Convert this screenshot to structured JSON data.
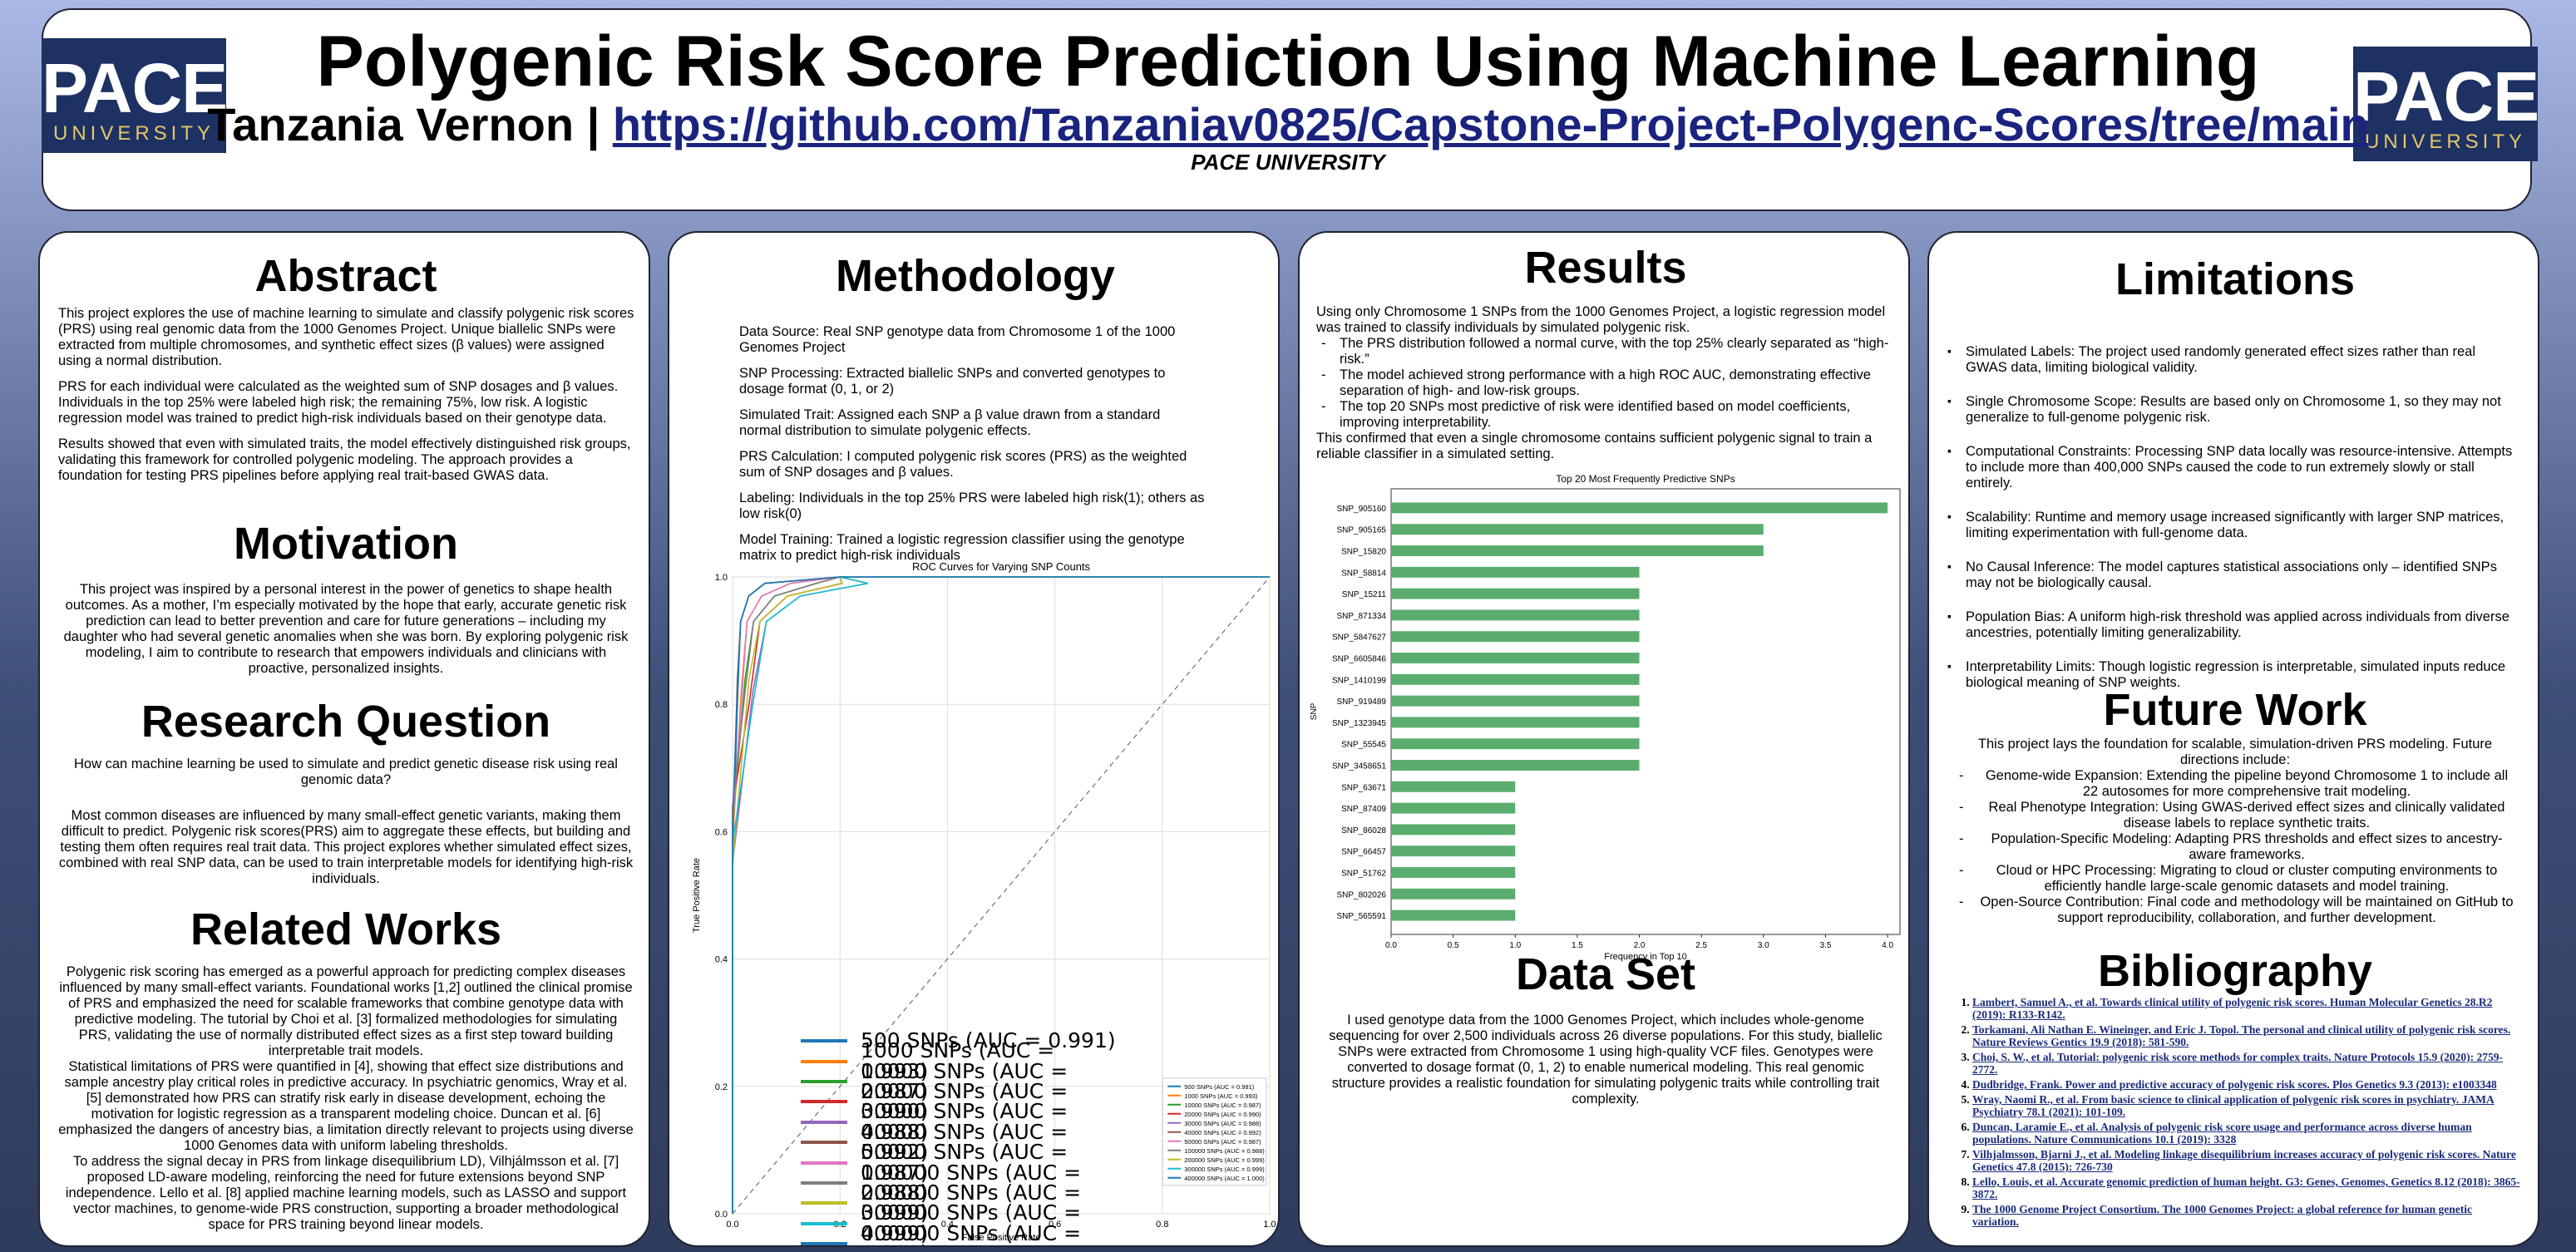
{
  "header": {
    "title": "Polygenic Risk Score Prediction Using Machine Learning",
    "author": "Tanzania Vernon | ",
    "link": "https://github.com/Tanzaniav0825/Capstone-Project-Polygenc-Scores/tree/main",
    "affiliation": "PACE UNIVERSITY",
    "logo_big": "PACE",
    "logo_small": "UNIVERSITY"
  },
  "abstract": {
    "heading": "Abstract",
    "p1": "This project explores the use of machine learning to simulate and classify polygenic risk scores (PRS) using real genomic data from the 1000 Genomes Project. Unique biallelic SNPs were extracted from multiple chromosomes, and synthetic effect sizes (β values) were assigned using a normal distribution.",
    "p2": "PRS for each individual were calculated as the weighted sum of SNP dosages and β values. Individuals in the top 25% were labeled high risk; the remaining 75%, low risk. A logistic regression model was trained to predict high-risk individuals based on their genotype data.",
    "p3": "Results showed that even with simulated traits, the model effectively distinguished risk groups, validating this framework for controlled polygenic modeling. The approach provides a foundation for testing PRS pipelines before applying real trait-based GWAS data."
  },
  "motivation": {
    "heading": "Motivation",
    "text": "This project was inspired by a personal interest in the power of genetics to shape health outcomes. As a mother, I’m especially motivated by the hope that early, accurate genetic risk prediction can lead to better prevention and care for future generations – including my daughter who had several genetic anomalies when she was born. By exploring polygenic risk modeling, I aim to contribute to research that empowers individuals and clinicians with proactive, personalized insights."
  },
  "research": {
    "heading": "Research Question",
    "q": "How can machine learning be used to simulate and predict genetic disease risk using real genomic data?",
    "text": "Most common diseases are influenced by many small-effect genetic variants, making them difficult to predict. Polygenic risk scores(PRS) aim to aggregate these effects, but building and testing them often requires real trait data. This project explores whether simulated effect sizes, combined with real SNP data, can be used to train interpretable models for identifying high-risk individuals."
  },
  "related": {
    "heading": "Related Works",
    "p1": "Polygenic risk scoring has emerged as a powerful approach for predicting complex diseases influenced by many small-effect variants. Foundational works [1,2] outlined the clinical promise of PRS and emphasized the need for scalable frameworks that combine genotype data with predictive modeling. The tutorial by Choi et al. [3] formalized methodologies for simulating PRS, validating the use of normally distributed effect sizes as a first step toward building interpretable trait models.",
    "p2": "Statistical limitations of PRS were quantified in [4], showing that effect size distributions and sample ancestry play critical roles in predictive accuracy. In psychiatric genomics, Wray et al. [5] demonstrated how PRS can stratify risk early in disease development, echoing the motivation for logistic regression as a transparent modeling choice. Duncan et al. [6] emphasized the dangers of ancestry bias, a limitation directly relevant to projects using diverse 1000 Genomes data with uniform labeling thresholds.",
    "p3": "To address the signal decay in PRS from linkage disequilibrium LD), Vilhjálmsson et al. [7] proposed LD-aware modeling, reinforcing the need for future extensions beyond SNP independence. Lello et al. [8] applied machine learning models, such as LASSO and support vector machines, to genome-wide PRS construction, supporting a broader methodological space for PRS training beyond linear models."
  },
  "methodology": {
    "heading": "Methodology",
    "items": [
      "Data Source: Real SNP genotype data from Chromosome 1 of the 1000 Genomes Project",
      "SNP Processing: Extracted biallelic SNPs and converted genotypes to dosage format (0, 1, or 2)",
      "Simulated Trait: Assigned each SNP a β value drawn from a standard normal distribution to simulate polygenic effects.",
      "PRS Calculation: I computed polygenic risk scores (PRS) as the weighted sum of SNP dosages and β values.",
      "Labeling: Individuals in the top 25% PRS were labeled high risk(1); others as low risk(0)",
      "Model Training: Trained a logistic regression classifier using the genotype matrix to predict high-risk individuals"
    ]
  },
  "results": {
    "heading": "Results",
    "intro": "Using only Chromosome 1 SNPs from the 1000 Genomes Project, a logistic regression model was trained to classify individuals by simulated polygenic risk.",
    "bullets": [
      "The PRS distribution followed a normal curve, with the top 25% clearly separated as “high-risk.”",
      "The model achieved strong performance with a high ROC AUC, demonstrating effective separation of high- and low-risk groups.",
      "The top 20 SNPs most predictive of risk were identified based on model coefficients, improving interpretability."
    ],
    "conclusion": "This confirmed that even a single chromosome contains sufficient polygenic signal to train a reliable classifier in a simulated setting."
  },
  "dataset": {
    "heading": "Data Set",
    "text": "I used genotype data from the 1000 Genomes Project, which includes whole-genome sequencing for over 2,500 individuals across 26 diverse populations. For this study, biallelic SNPs were extracted from Chromosome 1 using high-quality VCF files. Genotypes were converted to dosage format (0, 1, 2) to enable numerical modeling. This real genomic structure provides a realistic foundation for simulating polygenic traits while controlling trait complexity."
  },
  "limitations": {
    "heading": "Limitations",
    "items": [
      "Simulated Labels: The project used randomly generated effect sizes rather than real GWAS data, limiting biological validity.",
      "Single Chromosome Scope: Results are based only on Chromosome 1, so they may not generalize to full-genome polygenic risk.",
      "Computational Constraints: Processing SNP data locally was resource-intensive. Attempts to include more than 400,000 SNPs caused the code to run extremely slowly or stall entirely.",
      "Scalability: Runtime and memory usage increased significantly with larger SNP matrices, limiting experimentation with full-genome data.",
      "No Causal Inference: The model captures statistical associations only – identified SNPs may not be biologically causal.",
      "Population Bias: A uniform high-risk threshold was applied across individuals from diverse ancestries, potentially limiting generalizability.",
      "Interpretability Limits: Though logistic regression is interpretable, simulated inputs reduce biological meaning of SNP weights."
    ]
  },
  "future": {
    "heading": "Future Work",
    "intro": "This project lays the foundation for scalable, simulation-driven PRS modeling. Future directions include:",
    "items": [
      "Genome-wide Expansion: Extending the pipeline beyond Chromosome 1 to include all 22 autosomes for more comprehensive trait modeling.",
      "Real Phenotype Integration: Using GWAS-derived effect sizes and clinically validated disease labels to replace synthetic traits.",
      "Population-Specific Modeling: Adapting PRS thresholds and effect sizes to ancestry-aware frameworks.",
      "Cloud or HPC Processing: Migrating to cloud or cluster computing environments to efficiently handle large-scale genomic datasets and model training.",
      "Open-Source Contribution: Final code and methodology will be maintained on GitHub to support reproducibility, collaboration, and further development."
    ]
  },
  "bibliography": {
    "heading": "Bibliography",
    "items": [
      "Lambert, Samuel A., et al. Towards clinical utility of polygenic risk scores. Human Molecular Genetics 28.R2 (2019): R133-R142.",
      "Torkamani, Ali Nathan E. Wineinger, and Eric J. Topol. The personal and clinical utility of polygenic risk scores. Nature Reviews Gentics 19.9 (2018): 581-590.",
      "Choi, S. W., et al. Tutorial: polygenic risk score methods for complex traits. Nature Protocols 15.9 (2020): 2759-2772.",
      "Dudbridge, Frank. Power and predictive accuracy of polygenic risk scores. Plos Genetics 9.3 (2013): e1003348",
      "Wray, Naomi R., et al. From basic science to clinical application of polygenic risk scores in psychiatry. JAMA Psychiatry 78.1 (2021): 101-109.",
      "Duncan, Laramie E., et al. Analysis of polygenic risk score usage and performance across diverse human populations. Nature Communications 10.1 (2019): 3328",
      "Vilhjalmsson, Bjarni J., et al. Modeling linkage disequilibrium increases accuracy of polygenic risk scores. Nature Genetics 47.8 (2015): 726-730",
      "Lello, Louis, et al. Accurate genomic prediction of human height. G3: Genes, Genomes, Genetics 8.12 (2018): 3865-3872.",
      "The 1000 Genome Project Consortium. The 1000 Genomes Project: a global reference for human genetic variation."
    ]
  },
  "chart_data": [
    {
      "type": "line",
      "title": "ROC Curves for Varying SNP Counts",
      "xlabel": "False Positive Rate",
      "ylabel": "True Positive Rate",
      "xlim": [
        0,
        1
      ],
      "ylim": [
        0,
        1
      ],
      "xticks": [
        "0.0",
        "0.2",
        "0.4",
        "0.6",
        "0.8",
        "1.0"
      ],
      "yticks": [
        "0.0",
        "0.2",
        "0.4",
        "0.6",
        "0.8",
        "1.0"
      ],
      "grid": true,
      "legend_position": "bottom-right",
      "series": [
        {
          "name": "500 SNPs (AUC = 0.991)",
          "color": "#1f77b4"
        },
        {
          "name": "1000 SNPs (AUC = 0.993)",
          "color": "#ff7f0e"
        },
        {
          "name": "10000 SNPs (AUC = 0.987)",
          "color": "#2ca02c"
        },
        {
          "name": "20000 SNPs (AUC = 0.990)",
          "color": "#d62728"
        },
        {
          "name": "30000 SNPs (AUC = 0.988)",
          "color": "#9467bd"
        },
        {
          "name": "40000 SNPs (AUC = 0.992)",
          "color": "#8c564b"
        },
        {
          "name": "50000 SNPs (AUC = 0.987)",
          "color": "#e377c2"
        },
        {
          "name": "100000 SNPs (AUC = 0.988)",
          "color": "#7f7f7f"
        },
        {
          "name": "200000 SNPs (AUC = 0.999)",
          "color": "#bcbd22"
        },
        {
          "name": "300000 SNPs (AUC = 0.999)",
          "color": "#17becf"
        },
        {
          "name": "400000 SNPs (AUC = 1.000)",
          "color": "#1f77b4"
        }
      ]
    },
    {
      "type": "bar",
      "orientation": "horizontal",
      "title": "Top 20 Most Frequently Predictive SNPs",
      "xlabel": "Frequency in Top 10",
      "ylabel": "SNP",
      "xlim": [
        0,
        4.1
      ],
      "xticks": [
        "0.0",
        "0.5",
        "1.0",
        "1.5",
        "2.0",
        "2.5",
        "3.0",
        "3.5",
        "4.0"
      ],
      "color": "#5aad6e",
      "categories": [
        "SNP_905160",
        "SNP_905165",
        "SNP_15820",
        "SNP_58814",
        "SNP_15211",
        "SNP_871334",
        "SNP_5847627",
        "SNP_6605846",
        "SNP_1410199",
        "SNP_919489",
        "SNP_1323945",
        "SNP_55545",
        "SNP_3458651",
        "SNP_63671",
        "SNP_87409",
        "SNP_86028",
        "SNP_66457",
        "SNP_51762",
        "SNP_802026",
        "SNP_565591"
      ],
      "values": [
        4,
        3,
        3,
        2,
        2,
        2,
        2,
        2,
        2,
        2,
        2,
        2,
        2,
        1,
        1,
        1,
        1,
        1,
        1,
        1
      ]
    }
  ]
}
